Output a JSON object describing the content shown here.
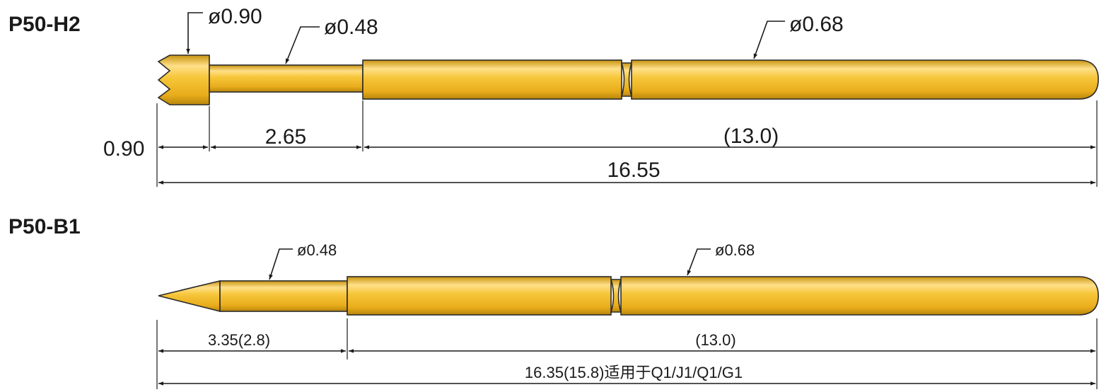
{
  "probe_h2": {
    "model": "P50-H2",
    "tip_diameter": "ø0.90",
    "plunger_diameter": "ø0.48",
    "barrel_diameter": "ø0.68",
    "tip_length": "0.90",
    "plunger_length": "2.65",
    "barrel_length": "(13.0)",
    "total_length": "16.55"
  },
  "probe_b1": {
    "model": "P50-B1",
    "plunger_diameter": "ø0.48",
    "barrel_diameter": "ø0.68",
    "plunger_length": "3.35(2.8)",
    "barrel_length": "(13.0)",
    "total_length": "16.35(15.8)适用于Q1/J1/Q1/G1"
  },
  "colors": {
    "gold_light": "#ffe08a",
    "gold_mid": "#f2bd2e",
    "gold_dark": "#b9860c",
    "line": "#1a1a1a"
  }
}
